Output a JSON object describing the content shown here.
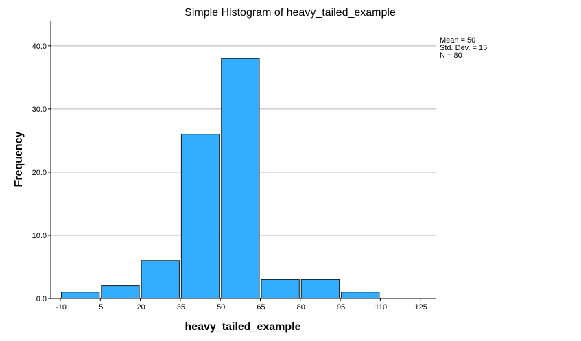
{
  "chart_data": {
    "type": "bar",
    "title": "Simple Histogram of heavy_tailed_example",
    "xlabel": "heavy_tailed_example",
    "ylabel": "Frequency",
    "bin_edges": [
      -10,
      5,
      20,
      35,
      50,
      65,
      80,
      95,
      110,
      125
    ],
    "x_tick_labels": [
      "-10",
      "5",
      "20",
      "35",
      "50",
      "65",
      "80",
      "95",
      "110",
      "125"
    ],
    "values": [
      1,
      2,
      6,
      26,
      38,
      3,
      3,
      1,
      0
    ],
    "ylim": [
      0,
      44
    ],
    "y_ticks": [
      0,
      10,
      20,
      30,
      40
    ],
    "y_tick_labels": [
      "0.0",
      "10.0",
      "20.0",
      "30.0",
      "40.0"
    ],
    "grid": true,
    "bar_color": "#33adff",
    "stats": {
      "mean": "Mean = 50",
      "std": "Std. Dev. = 15",
      "n": "N = 80"
    },
    "legend_position": "top-right"
  }
}
